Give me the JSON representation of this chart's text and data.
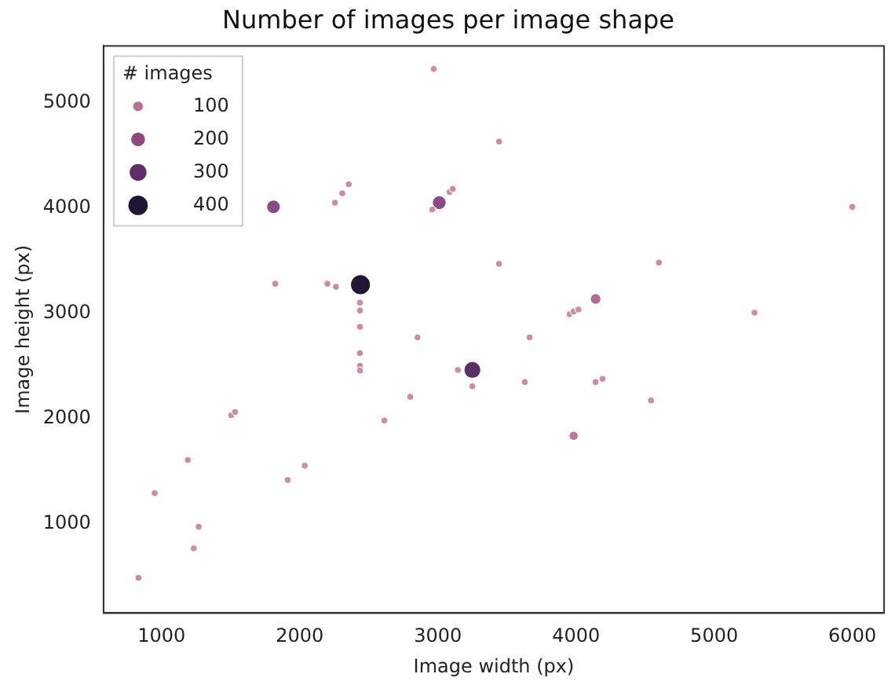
{
  "chart_data": {
    "type": "bubble",
    "title": "Number of images per image shape",
    "xlabel": "Image width (px)",
    "ylabel": "Image height (px)",
    "legend_title": "# images",
    "size_legend": [
      100,
      200,
      300,
      400
    ],
    "x": [
      2970,
      1810,
      2255,
      2308,
      2355,
      3010,
      2960,
      3085,
      3108,
      1823,
      2200,
      2262,
      2440,
      2436,
      2436,
      2436,
      2853,
      3443,
      6000,
      3443,
      4600,
      4142,
      3953,
      3983,
      4018,
      3664,
      5292,
      2436,
      2436,
      2436,
      3145,
      3250,
      3250,
      2800,
      2613,
      1505,
      1532,
      1190,
      950,
      1268,
      1233,
      833,
      1913,
      2037,
      3630,
      4142,
      4192,
      4543,
      3983
    ],
    "values": [
      5320,
      4010,
      4050,
      4140,
      4225,
      4050,
      3985,
      4150,
      4180,
      3280,
      3280,
      3250,
      3270,
      3100,
      3025,
      2870,
      2770,
      4630,
      4010,
      3470,
      3480,
      3135,
      2990,
      3015,
      3035,
      2770,
      3005,
      2620,
      2500,
      2455,
      2460,
      2460,
      2305,
      2205,
      1980,
      2030,
      2060,
      1605,
      1290,
      970,
      765,
      485,
      1415,
      1550,
      2345,
      2345,
      2375,
      2170,
      1835
    ],
    "sizes": [
      50,
      200,
      50,
      50,
      50,
      200,
      50,
      50,
      50,
      50,
      50,
      50,
      420,
      50,
      50,
      50,
      50,
      50,
      50,
      50,
      50,
      120,
      50,
      50,
      50,
      50,
      50,
      50,
      50,
      50,
      50,
      300,
      50,
      50,
      50,
      50,
      50,
      50,
      50,
      50,
      50,
      50,
      50,
      50,
      50,
      50,
      50,
      50,
      90
    ],
    "xlim": [
      580,
      6230
    ],
    "ylim": [
      150,
      5540
    ],
    "xticks": [
      1000,
      2000,
      3000,
      4000,
      5000,
      6000
    ],
    "yticks": [
      1000,
      2000,
      3000,
      4000,
      5000
    ],
    "grid": false
  }
}
